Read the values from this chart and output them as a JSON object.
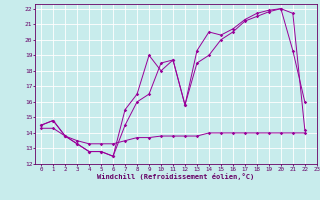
{
  "xlabel": "Windchill (Refroidissement éolien,°C)",
  "background_color": "#c8ecec",
  "line_color": "#990099",
  "grid_color": "#ffffff",
  "xlim": [
    -0.5,
    23
  ],
  "ylim": [
    12,
    22.3
  ],
  "xticks": [
    0,
    1,
    2,
    3,
    4,
    5,
    6,
    7,
    8,
    9,
    10,
    11,
    12,
    13,
    14,
    15,
    16,
    17,
    18,
    19,
    20,
    21,
    22,
    23
  ],
  "yticks": [
    12,
    13,
    14,
    15,
    16,
    17,
    18,
    19,
    20,
    21,
    22
  ],
  "line1_x": [
    0,
    1,
    2,
    3,
    4,
    5,
    6,
    7,
    8,
    9,
    10,
    11,
    12,
    13,
    14,
    15,
    16,
    17,
    18,
    19,
    20,
    21,
    22
  ],
  "line1_y": [
    14.5,
    14.8,
    13.8,
    13.3,
    12.8,
    12.8,
    12.5,
    14.5,
    16.0,
    16.5,
    18.5,
    18.7,
    15.8,
    18.5,
    19.0,
    20.0,
    20.5,
    21.2,
    21.5,
    21.8,
    22.0,
    19.3,
    16.0
  ],
  "line2_x": [
    0,
    1,
    2,
    3,
    4,
    5,
    6,
    7,
    8,
    9,
    10,
    11,
    12,
    13,
    14,
    15,
    16,
    17,
    18,
    19,
    20,
    21,
    22
  ],
  "line2_y": [
    14.5,
    14.8,
    13.8,
    13.3,
    12.8,
    12.8,
    12.5,
    15.5,
    16.5,
    19.0,
    18.0,
    18.7,
    15.8,
    19.3,
    20.5,
    20.3,
    20.7,
    21.3,
    21.7,
    21.9,
    22.0,
    21.7,
    14.2
  ],
  "line3_x": [
    0,
    1,
    2,
    3,
    4,
    5,
    6,
    7,
    8,
    9,
    10,
    11,
    12,
    13,
    14,
    15,
    16,
    17,
    18,
    19,
    20,
    21,
    22
  ],
  "line3_y": [
    14.3,
    14.3,
    13.8,
    13.5,
    13.3,
    13.3,
    13.3,
    13.5,
    13.7,
    13.7,
    13.8,
    13.8,
    13.8,
    13.8,
    14.0,
    14.0,
    14.0,
    14.0,
    14.0,
    14.0,
    14.0,
    14.0,
    14.0
  ]
}
